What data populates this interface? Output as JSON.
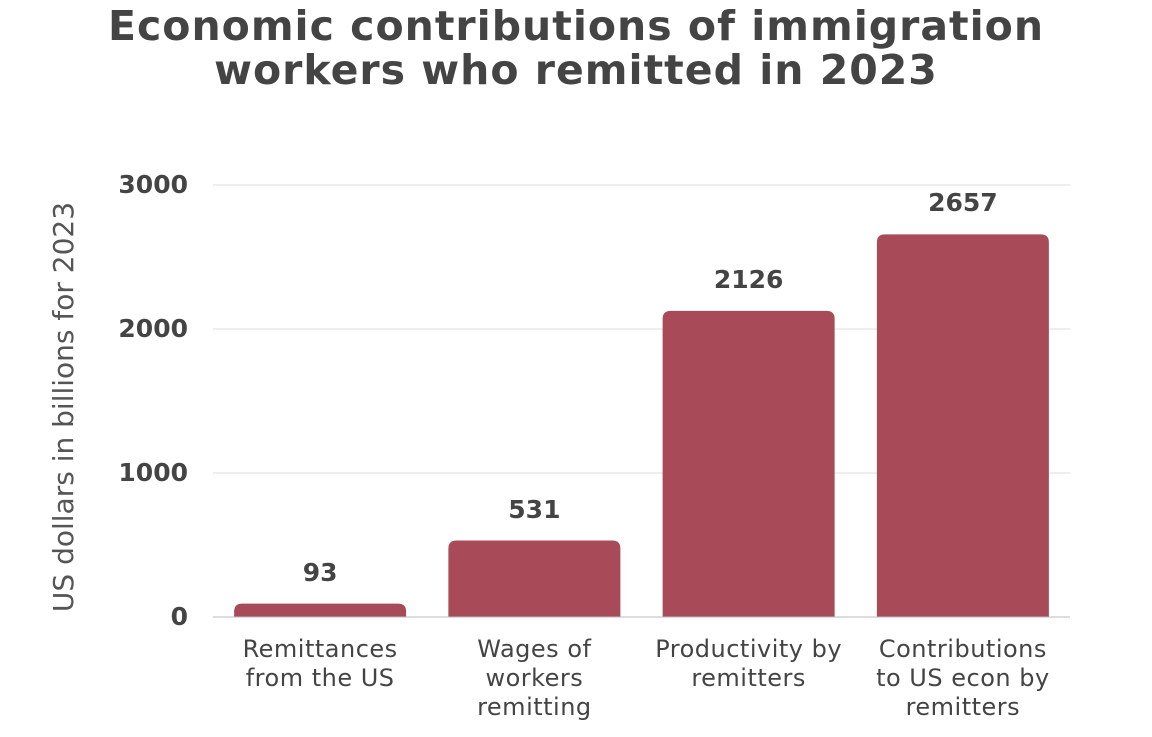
{
  "chart_data": {
    "type": "bar",
    "title": "Economic contributions of immigration workers who remitted in 2023",
    "y_label": "US dollars in billions for 2023",
    "categories": [
      "Remittances from the US",
      "Wages of workers remitting",
      "Productivity by remitters",
      "Contributions to US econ by remitters"
    ],
    "values": [
      93,
      531,
      2126,
      2657
    ],
    "color": "#a84a58",
    "ylim": [
      0,
      3000
    ],
    "yticks": [
      0,
      1000,
      2000,
      3000
    ],
    "grid": true
  }
}
